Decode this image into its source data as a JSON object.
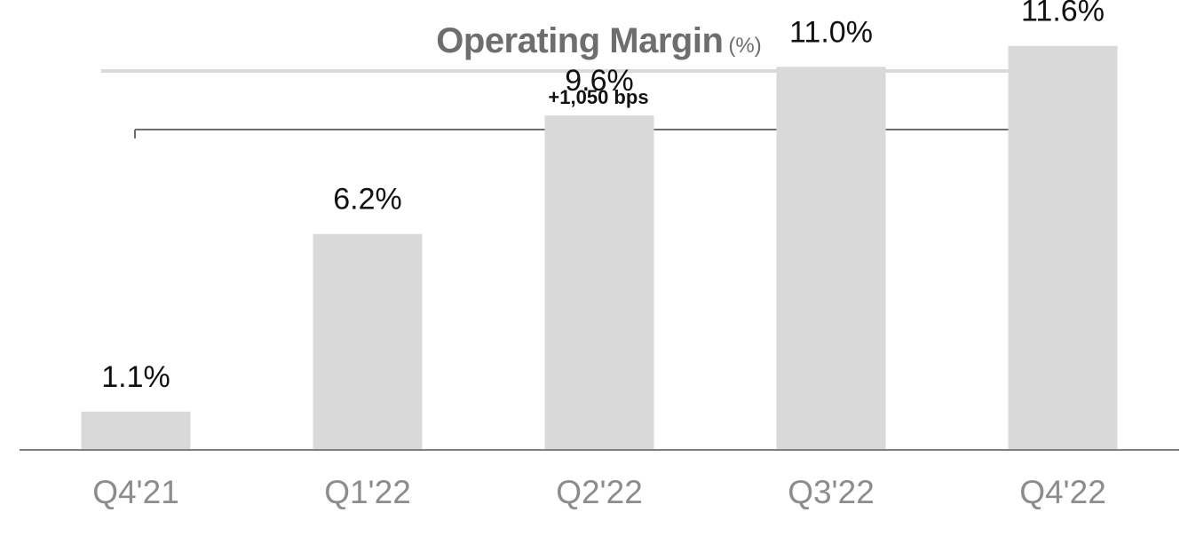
{
  "chart_data": {
    "type": "bar",
    "title": "Operating Margin",
    "title_unit": "(%)",
    "categories": [
      "Q4'21",
      "Q1'22",
      "Q2'22",
      "Q3'22",
      "Q4'22"
    ],
    "values": [
      1.1,
      6.2,
      9.6,
      11.0,
      11.6
    ],
    "value_labels": [
      "1.1%",
      "6.2%",
      "9.6%",
      "11.0%",
      "11.6%"
    ],
    "annotation": "+1,050 bps",
    "ylim": [
      0,
      12
    ],
    "grid": false,
    "legend": "none",
    "colors": {
      "bar": "#d9d9d9",
      "axis": "#7f7f7f",
      "title": "#6e6e6e",
      "value_label": "#111111",
      "tick_label": "#8c8c8c",
      "annotation": "#111111",
      "title_rule": "#d9d9d9",
      "bracket": "#6e6e6e"
    }
  }
}
